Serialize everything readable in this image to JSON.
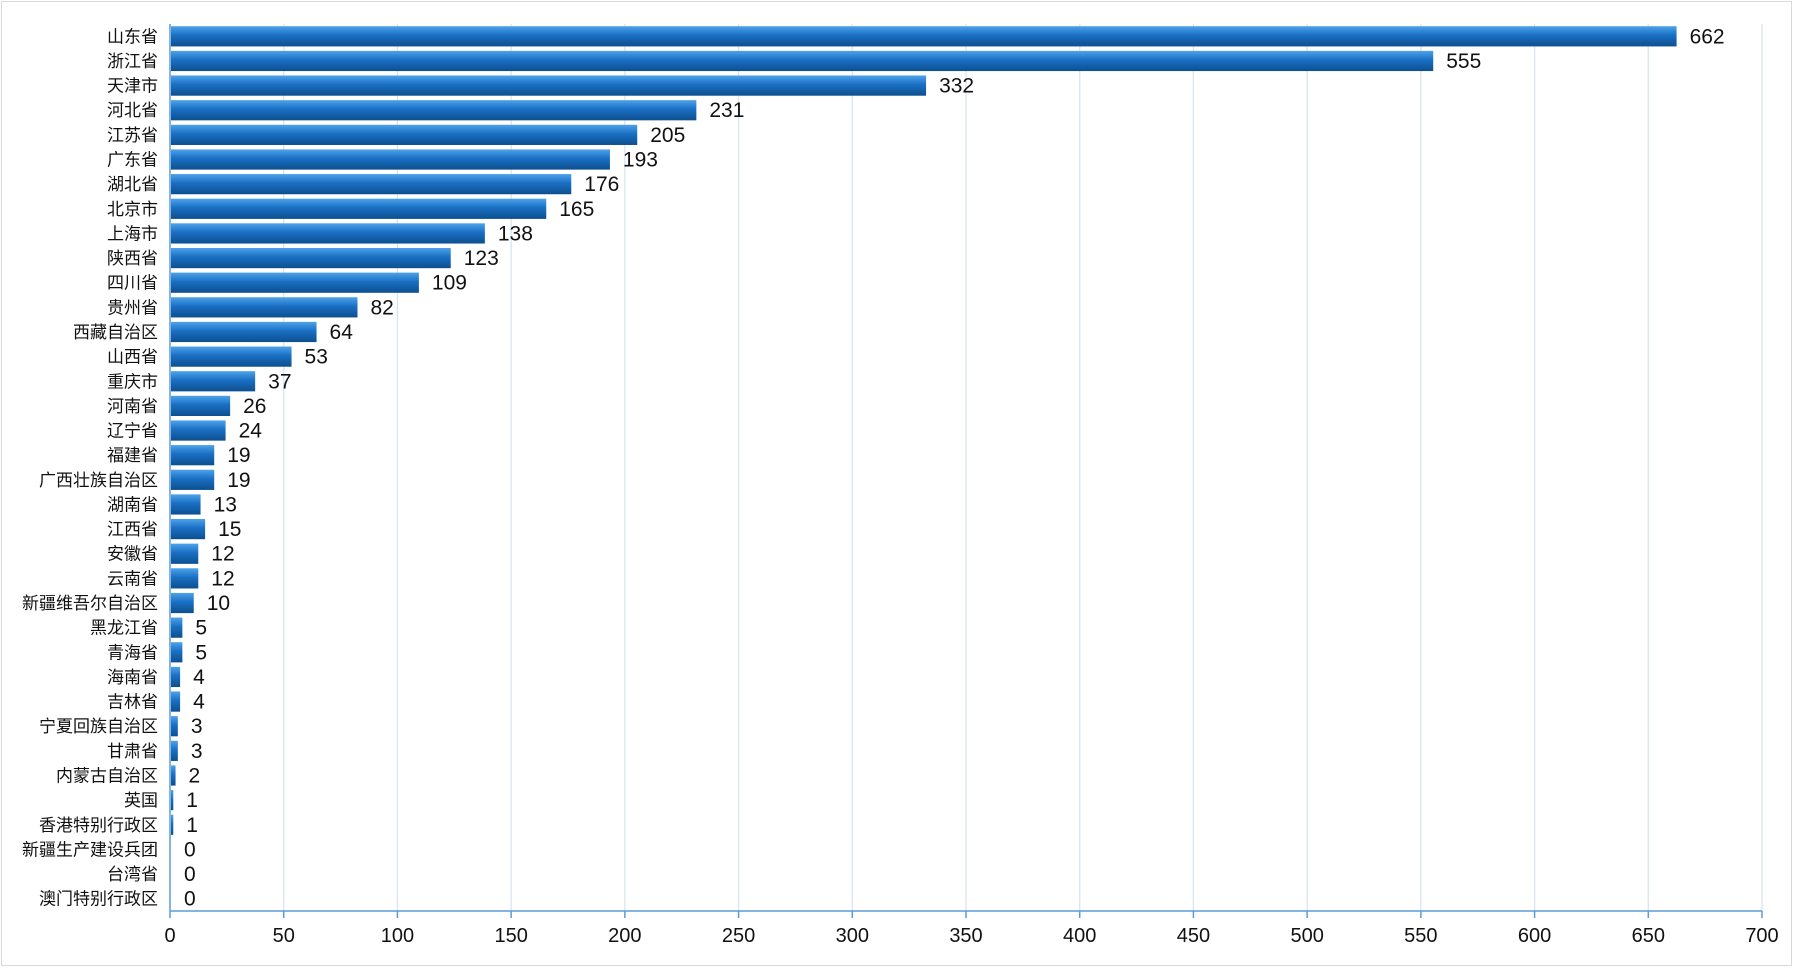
{
  "chart_data": {
    "type": "bar",
    "orientation": "horizontal",
    "categories": [
      "山东省",
      "浙江省",
      "天津市",
      "河北省",
      "江苏省",
      "广东省",
      "湖北省",
      "北京市",
      "上海市",
      "陕西省",
      "四川省",
      "贵州省",
      "西藏自治区",
      "山西省",
      "重庆市",
      "河南省",
      "辽宁省",
      "福建省",
      "广西壮族自治区",
      "湖南省",
      "江西省",
      "安徽省",
      "云南省",
      "新疆维吾尔自治区",
      "黑龙江省",
      "青海省",
      "海南省",
      "吉林省",
      "宁夏回族自治区",
      "甘肃省",
      "内蒙古自治区",
      "英国",
      "香港特别行政区",
      "新疆生产建设兵团",
      "台湾省",
      "澳门特别行政区"
    ],
    "values": [
      662,
      555,
      332,
      231,
      205,
      193,
      176,
      165,
      138,
      123,
      109,
      82,
      64,
      53,
      37,
      26,
      24,
      19,
      19,
      13,
      15,
      12,
      12,
      10,
      5,
      5,
      4,
      4,
      3,
      3,
      2,
      1,
      1,
      0,
      0,
      0
    ],
    "xlim": [
      0,
      700
    ],
    "xticks": [
      0,
      50,
      100,
      150,
      200,
      250,
      300,
      350,
      400,
      450,
      500,
      550,
      600,
      650,
      700
    ],
    "title": "",
    "xlabel": "",
    "ylabel": "",
    "grid": "vertical",
    "legend": "none",
    "colors": {
      "bar_dark": "#0d4f8f",
      "bar_mid": "#1a6fc4",
      "bar_light": "#4da3ea",
      "grid": "#d9e4ee",
      "axis": "#5b9bd5"
    }
  }
}
